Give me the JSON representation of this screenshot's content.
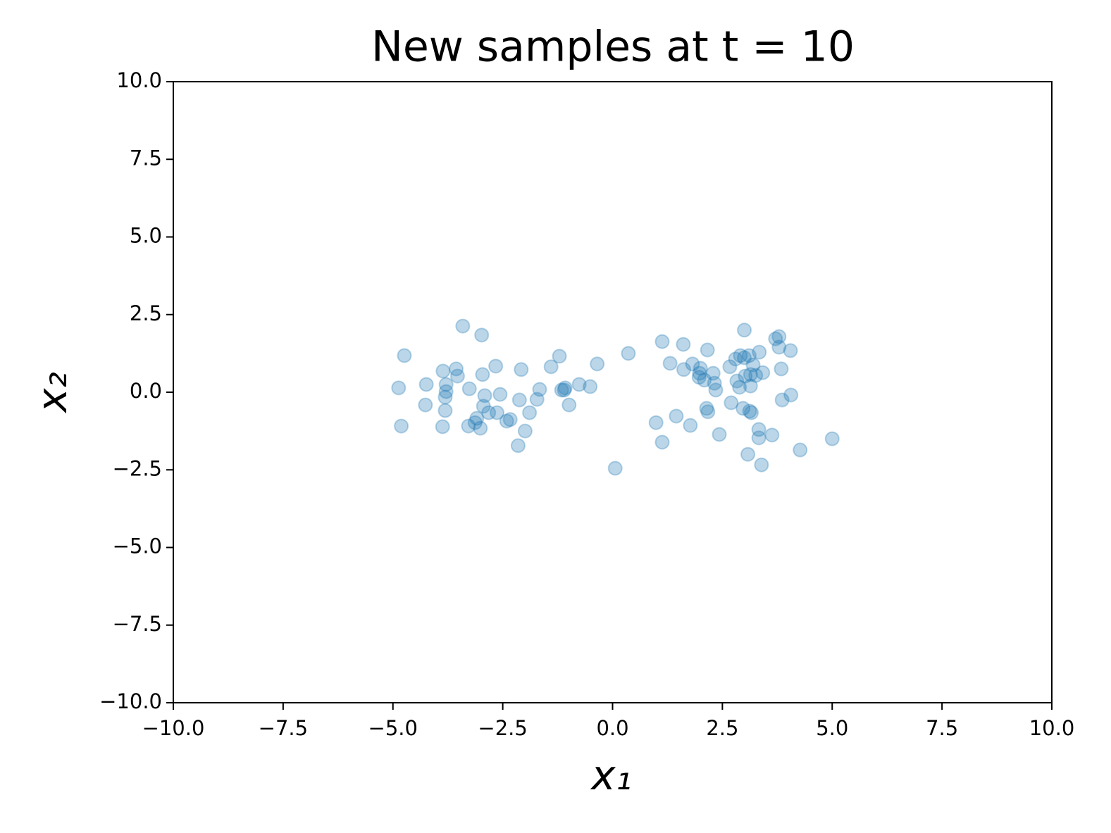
{
  "chart_data": {
    "type": "scatter",
    "title": "New samples at t = 10",
    "xlabel": "x₁",
    "ylabel": "x₂",
    "color": "#1f77b4",
    "alpha": 0.3,
    "xlim": [
      -10,
      10
    ],
    "ylim": [
      -10,
      10
    ],
    "xticks": [
      {
        "value": -10,
        "label": "−10.0"
      },
      {
        "value": -7.5,
        "label": "−7.5"
      },
      {
        "value": -5,
        "label": "−5.0"
      },
      {
        "value": -2.5,
        "label": "−2.5"
      },
      {
        "value": 0,
        "label": "0.0"
      },
      {
        "value": 2.5,
        "label": "2.5"
      },
      {
        "value": 5,
        "label": "5.0"
      },
      {
        "value": 7.5,
        "label": "7.5"
      },
      {
        "value": 10,
        "label": "10.0"
      }
    ],
    "yticks": [
      {
        "value": -10,
        "label": "−10.0"
      },
      {
        "value": -7.5,
        "label": "−7.5"
      },
      {
        "value": -5,
        "label": "−5.0"
      },
      {
        "value": -2.5,
        "label": "−2.5"
      },
      {
        "value": 0,
        "label": "0.0"
      },
      {
        "value": 2.5,
        "label": "2.5"
      },
      {
        "value": 5,
        "label": "5.0"
      },
      {
        "value": 7.5,
        "label": "7.5"
      },
      {
        "value": 10,
        "label": "10.0"
      }
    ],
    "x": [
      -4.87,
      -4.74,
      -4.81,
      -4.26,
      -4.24,
      -3.86,
      -3.79,
      -3.79,
      -3.81,
      -3.81,
      -3.87,
      -3.56,
      -3.53,
      -3.41,
      -3.26,
      -3.28,
      -3.13,
      -3.09,
      -3.01,
      -2.98,
      -2.96,
      -2.91,
      -2.94,
      -2.82,
      -2.66,
      -2.63,
      -2.56,
      -2.41,
      -2.33,
      -2.08,
      -2.12,
      -2.15,
      -1.99,
      -1.89,
      -1.72,
      -1.66,
      -1.4,
      -1.21,
      -1.16,
      -1.08,
      -1.1,
      -0.99,
      -0.76,
      -0.51,
      -0.35,
      0.36,
      0.06,
      0.99,
      1.13,
      1.13,
      1.31,
      1.45,
      1.61,
      1.62,
      1.77,
      1.82,
      1.97,
      2.0,
      1.98,
      2.09,
      2.16,
      2.14,
      2.17,
      2.29,
      2.32,
      2.35,
      2.43,
      2.67,
      2.7,
      2.8,
      2.83,
      2.89,
      2.91,
      2.97,
      3.0,
      3.0,
      3.02,
      3.08,
      3.11,
      3.12,
      3.14,
      3.16,
      3.14,
      3.2,
      3.26,
      3.33,
      3.33,
      3.34,
      3.39,
      3.42,
      3.63,
      3.71,
      3.79,
      3.79,
      3.84,
      3.86,
      4.05,
      4.06,
      4.27,
      5.0
    ],
    "values": [
      0.14,
      1.18,
      -1.09,
      -0.41,
      0.25,
      0.68,
      0.25,
      0.02,
      -0.16,
      -0.59,
      -1.11,
      0.75,
      0.52,
      2.13,
      0.11,
      -1.09,
      -0.98,
      -0.84,
      -1.16,
      1.84,
      0.57,
      -0.11,
      -0.45,
      -0.66,
      0.84,
      -0.66,
      -0.07,
      -0.93,
      -0.88,
      0.73,
      -0.25,
      -1.72,
      -1.25,
      -0.66,
      -0.23,
      0.09,
      0.82,
      1.16,
      0.07,
      0.14,
      0.07,
      -0.41,
      0.25,
      0.18,
      0.91,
      1.25,
      -2.45,
      -0.98,
      -1.61,
      1.63,
      0.93,
      -0.77,
      1.54,
      0.73,
      -1.07,
      0.91,
      0.48,
      0.77,
      0.61,
      0.39,
      1.36,
      -0.52,
      -0.63,
      0.61,
      0.29,
      0.07,
      -1.36,
      0.82,
      -0.34,
      1.07,
      0.36,
      0.16,
      1.18,
      -0.52,
      2.0,
      1.11,
      0.52,
      -2.0,
      1.18,
      -0.61,
      0.2,
      -0.66,
      0.57,
      0.88,
      0.54,
      -1.2,
      -1.47,
      1.29,
      -2.34,
      0.63,
      -1.38,
      1.72,
      1.79,
      1.45,
      0.75,
      -0.25,
      1.34,
      -0.09,
      -1.86,
      -1.5
    ]
  }
}
